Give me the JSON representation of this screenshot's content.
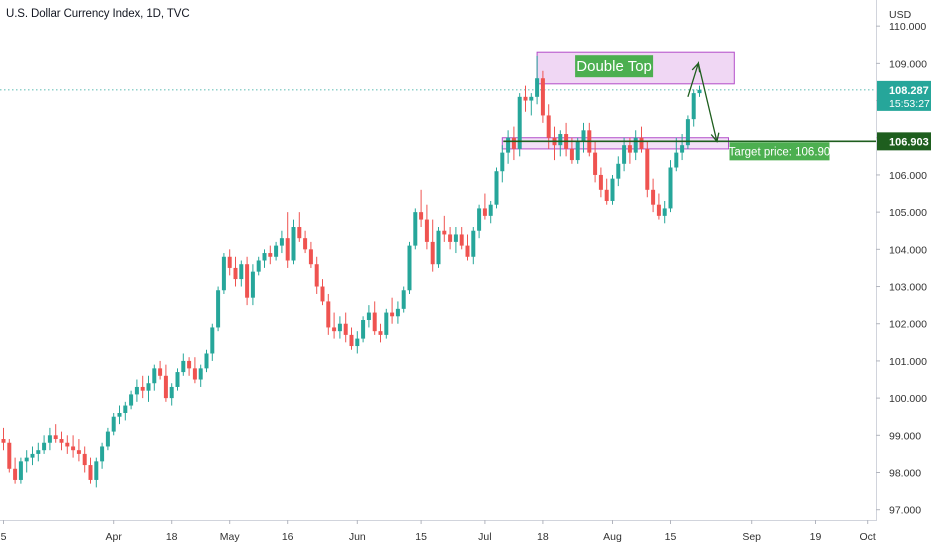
{
  "header": {
    "title": "U.S. Dollar Currency Index, 1D, TVC"
  },
  "price_axis": {
    "currency": "USD",
    "current_price": "108.287",
    "countdown": "15:53:27",
    "level_price": "106.903"
  },
  "colors": {
    "up": "#26a69a",
    "down": "#ef5350",
    "zone_fill": "#e9c6f0",
    "zone_border": "#b24cc9",
    "label_green": "#4caf50",
    "support_line": "#1e5e1e",
    "arrow": "#1e5e1e",
    "current_line": "#26a69a"
  },
  "annotations": {
    "pattern_label": "Double Top",
    "target_label": "Target price: 106.90"
  },
  "chart_data": {
    "type": "candlestick",
    "title": "U.S. Dollar Currency Index, 1D, TVC",
    "ylabel": "USD",
    "ylim": [
      96.75,
      110.3
    ],
    "y_ticks": [
      "97.000",
      "98.000",
      "99.000",
      "100.000",
      "101.000",
      "102.000",
      "103.000",
      "104.000",
      "105.000",
      "106.000",
      "107.000",
      "108.000",
      "109.000",
      "110.000"
    ],
    "x_ticks": [
      {
        "label": "5",
        "index": 0
      },
      {
        "label": "Apr",
        "index": 19
      },
      {
        "label": "18",
        "index": 29
      },
      {
        "label": "May",
        "index": 39
      },
      {
        "label": "16",
        "index": 49
      },
      {
        "label": "Jun",
        "index": 61
      },
      {
        "label": "15",
        "index": 72
      },
      {
        "label": "Jul",
        "index": 83
      },
      {
        "label": "18",
        "index": 93
      },
      {
        "label": "Aug",
        "index": 105
      },
      {
        "label": "15",
        "index": 115
      },
      {
        "label": "Sep",
        "index": 129
      },
      {
        "label": "19",
        "index": 140
      },
      {
        "label": "Oct",
        "index": 149
      }
    ],
    "x_ticks_note": "",
    "current_price": 108.287,
    "support_level": 106.903,
    "target_price": 106.9,
    "double_top_zone": {
      "from_index": 92,
      "to_index": 126,
      "low": 108.45,
      "high": 109.3
    },
    "neckline_zone": {
      "from_index": 86,
      "to_index": 125,
      "low": 106.7,
      "high": 107.0
    },
    "projection": [
      {
        "index": 118,
        "value": 108.1
      },
      {
        "index": 119.8,
        "value": 109.0
      },
      {
        "index": 123,
        "value": 106.9
      }
    ],
    "candles": [
      [
        98.9,
        99.2,
        98.6,
        98.8
      ],
      [
        98.8,
        98.9,
        98.0,
        98.1
      ],
      [
        98.1,
        98.4,
        97.7,
        97.8
      ],
      [
        97.8,
        98.4,
        97.7,
        98.3
      ],
      [
        98.3,
        98.6,
        98.0,
        98.4
      ],
      [
        98.4,
        98.7,
        98.2,
        98.5
      ],
      [
        98.5,
        98.8,
        98.3,
        98.6
      ],
      [
        98.6,
        99.0,
        98.5,
        98.8
      ],
      [
        98.8,
        99.2,
        98.6,
        99.0
      ],
      [
        99.0,
        99.3,
        98.8,
        98.9
      ],
      [
        98.9,
        99.1,
        98.6,
        98.8
      ],
      [
        98.8,
        99.0,
        98.5,
        98.7
      ],
      [
        98.7,
        99.0,
        98.4,
        98.6
      ],
      [
        98.6,
        98.9,
        98.3,
        98.5
      ],
      [
        98.5,
        98.7,
        98.0,
        98.2
      ],
      [
        98.2,
        98.4,
        97.7,
        97.8
      ],
      [
        97.8,
        98.4,
        97.6,
        98.3
      ],
      [
        98.3,
        98.8,
        98.1,
        98.7
      ],
      [
        98.7,
        99.2,
        98.6,
        99.1
      ],
      [
        99.1,
        99.6,
        99.0,
        99.5
      ],
      [
        99.5,
        99.8,
        99.3,
        99.6
      ],
      [
        99.6,
        99.9,
        99.4,
        99.8
      ],
      [
        99.8,
        100.2,
        99.7,
        100.1
      ],
      [
        100.1,
        100.5,
        99.9,
        100.3
      ],
      [
        100.3,
        100.6,
        100.0,
        100.2
      ],
      [
        100.2,
        100.6,
        99.9,
        100.4
      ],
      [
        100.4,
        100.9,
        100.2,
        100.8
      ],
      [
        100.8,
        101.0,
        100.5,
        100.6
      ],
      [
        100.6,
        100.9,
        99.9,
        100.0
      ],
      [
        100.0,
        100.4,
        99.8,
        100.3
      ],
      [
        100.3,
        100.8,
        100.2,
        100.7
      ],
      [
        100.7,
        101.2,
        100.6,
        101.0
      ],
      [
        101.0,
        101.1,
        100.6,
        100.8
      ],
      [
        100.8,
        101.1,
        100.4,
        100.5
      ],
      [
        100.5,
        100.9,
        100.3,
        100.8
      ],
      [
        100.8,
        101.3,
        100.7,
        101.2
      ],
      [
        101.2,
        102.0,
        101.0,
        101.9
      ],
      [
        101.9,
        103.0,
        101.8,
        102.9
      ],
      [
        102.9,
        103.9,
        102.8,
        103.8
      ],
      [
        103.8,
        104.0,
        103.3,
        103.5
      ],
      [
        103.5,
        103.8,
        103.0,
        103.2
      ],
      [
        103.2,
        103.7,
        103.0,
        103.6
      ],
      [
        103.6,
        103.8,
        102.5,
        102.7
      ],
      [
        102.7,
        103.6,
        102.5,
        103.4
      ],
      [
        103.4,
        103.8,
        103.3,
        103.7
      ],
      [
        103.7,
        104.0,
        103.5,
        103.9
      ],
      [
        103.9,
        104.1,
        103.6,
        103.8
      ],
      [
        103.8,
        104.2,
        103.7,
        104.1
      ],
      [
        104.1,
        104.5,
        103.9,
        104.3
      ],
      [
        104.3,
        105.0,
        103.5,
        103.7
      ],
      [
        103.7,
        104.8,
        103.6,
        104.6
      ],
      [
        104.6,
        105.0,
        104.2,
        104.3
      ],
      [
        104.3,
        104.5,
        103.9,
        104.0
      ],
      [
        104.0,
        104.2,
        103.5,
        103.6
      ],
      [
        103.6,
        103.8,
        102.8,
        103.0
      ],
      [
        103.0,
        103.2,
        102.5,
        102.6
      ],
      [
        102.6,
        102.8,
        101.7,
        101.9
      ],
      [
        101.9,
        102.3,
        101.6,
        101.8
      ],
      [
        101.8,
        102.2,
        101.6,
        102.0
      ],
      [
        102.0,
        102.3,
        101.5,
        101.7
      ],
      [
        101.7,
        101.9,
        101.3,
        101.4
      ],
      [
        101.4,
        101.8,
        101.2,
        101.6
      ],
      [
        101.6,
        102.2,
        101.5,
        102.1
      ],
      [
        102.1,
        102.5,
        101.9,
        102.3
      ],
      [
        102.3,
        102.6,
        101.7,
        101.8
      ],
      [
        101.8,
        102.0,
        101.5,
        101.7
      ],
      [
        101.7,
        102.4,
        101.6,
        102.3
      ],
      [
        102.3,
        102.7,
        102.0,
        102.2
      ],
      [
        102.2,
        102.6,
        102.0,
        102.4
      ],
      [
        102.4,
        103.0,
        102.3,
        102.9
      ],
      [
        102.9,
        104.2,
        102.8,
        104.1
      ],
      [
        104.1,
        105.1,
        104.0,
        105.0
      ],
      [
        105.0,
        105.6,
        104.6,
        104.8
      ],
      [
        104.8,
        105.2,
        104.0,
        104.2
      ],
      [
        104.2,
        104.8,
        103.4,
        103.6
      ],
      [
        103.6,
        104.6,
        103.5,
        104.5
      ],
      [
        104.5,
        104.9,
        104.2,
        104.4
      ],
      [
        104.4,
        104.6,
        104.0,
        104.2
      ],
      [
        104.2,
        104.6,
        103.9,
        104.4
      ],
      [
        104.4,
        104.6,
        104.0,
        104.1
      ],
      [
        104.1,
        104.4,
        103.7,
        103.8
      ],
      [
        103.8,
        104.6,
        103.6,
        104.5
      ],
      [
        104.5,
        105.2,
        104.3,
        105.1
      ],
      [
        105.1,
        105.5,
        104.8,
        104.9
      ],
      [
        104.9,
        105.3,
        104.7,
        105.2
      ],
      [
        105.2,
        106.2,
        105.1,
        106.1
      ],
      [
        106.1,
        106.8,
        105.8,
        106.6
      ],
      [
        106.6,
        107.2,
        106.3,
        107.0
      ],
      [
        107.0,
        107.3,
        106.4,
        106.7
      ],
      [
        106.7,
        108.2,
        106.5,
        108.1
      ],
      [
        108.1,
        108.4,
        107.7,
        108.0
      ],
      [
        108.0,
        108.2,
        107.6,
        108.1
      ],
      [
        108.1,
        109.2,
        107.9,
        108.6
      ],
      [
        108.6,
        108.8,
        107.4,
        107.6
      ],
      [
        107.6,
        107.9,
        106.7,
        107.0
      ],
      [
        107.0,
        107.3,
        106.4,
        106.8
      ],
      [
        106.8,
        107.2,
        106.5,
        107.1
      ],
      [
        107.1,
        107.4,
        106.5,
        106.7
      ],
      [
        106.7,
        107.0,
        106.3,
        106.4
      ],
      [
        106.4,
        107.0,
        106.3,
        106.9
      ],
      [
        106.9,
        107.4,
        106.6,
        107.2
      ],
      [
        107.2,
        107.4,
        106.5,
        106.6
      ],
      [
        106.6,
        106.9,
        105.8,
        106.0
      ],
      [
        106.0,
        106.2,
        105.4,
        105.6
      ],
      [
        105.6,
        105.9,
        105.2,
        105.3
      ],
      [
        105.3,
        106.0,
        105.2,
        105.9
      ],
      [
        105.9,
        106.5,
        105.7,
        106.3
      ],
      [
        106.3,
        107.0,
        106.1,
        106.8
      ],
      [
        106.8,
        107.0,
        106.3,
        106.6
      ],
      [
        106.6,
        107.2,
        106.4,
        107.0
      ],
      [
        107.0,
        107.3,
        106.6,
        106.7
      ],
      [
        106.7,
        106.9,
        105.4,
        105.6
      ],
      [
        105.6,
        105.9,
        105.0,
        105.2
      ],
      [
        105.2,
        105.5,
        104.8,
        104.9
      ],
      [
        104.9,
        105.3,
        104.7,
        105.1
      ],
      [
        105.1,
        106.4,
        105.0,
        106.2
      ],
      [
        106.2,
        107.0,
        106.1,
        106.6
      ],
      [
        106.6,
        107.1,
        106.4,
        106.8
      ],
      [
        106.8,
        107.6,
        106.7,
        107.5
      ],
      [
        107.5,
        108.3,
        107.3,
        108.2
      ],
      [
        108.2,
        108.4,
        108.1,
        108.287
      ]
    ]
  }
}
